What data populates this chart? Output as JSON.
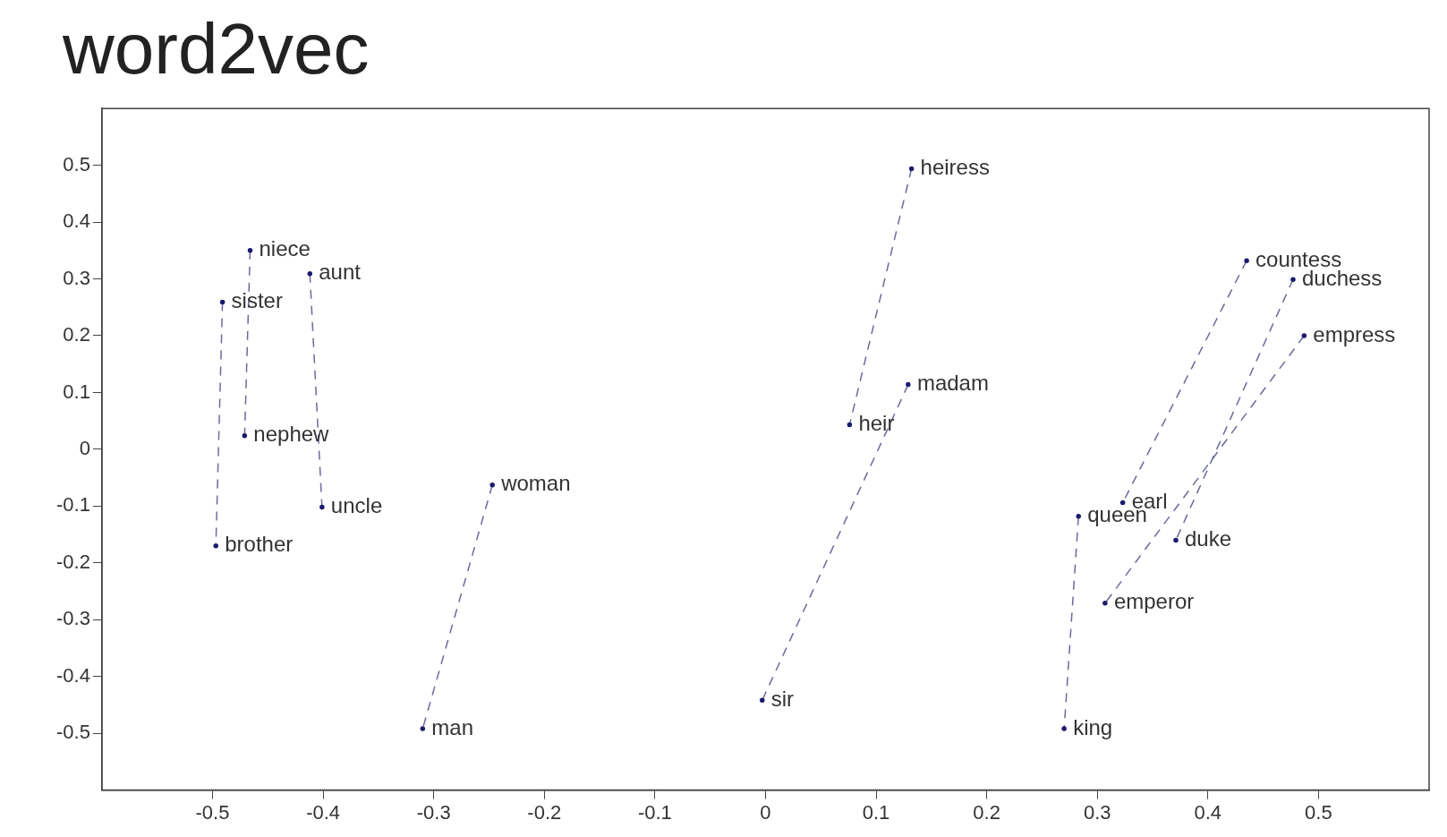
{
  "chart_data": {
    "type": "line",
    "title": "word2vec",
    "xlim": [
      -0.6,
      0.6
    ],
    "xticks": [
      -0.5,
      -0.4,
      -0.3,
      -0.2,
      -0.1,
      0,
      0.1,
      0.2,
      0.3,
      0.4,
      0.5
    ],
    "ylim": [
      -0.6,
      0.6
    ],
    "yticks": [
      -0.5,
      -0.4,
      -0.3,
      -0.2,
      -0.1,
      0,
      0.1,
      0.2,
      0.3,
      0.4,
      0.5
    ],
    "grid": false,
    "legend": false,
    "marker": "circle",
    "line_style": "dashed",
    "series": [
      {
        "x": [
          0.132,
          0.076
        ],
        "values": [
          0.494,
          0.043
        ],
        "color": "#6a6a9c"
      },
      {
        "x": [
          0.129,
          -0.003
        ],
        "values": [
          0.114,
          -0.442
        ],
        "color": "#6a6a9c"
      },
      {
        "x": [
          -0.466,
          -0.471
        ],
        "values": [
          0.35,
          0.024
        ],
        "color": "#6a6a9c"
      },
      {
        "x": [
          -0.412,
          -0.401
        ],
        "values": [
          0.309,
          -0.102
        ],
        "color": "#6a6a9c"
      },
      {
        "x": [
          -0.491,
          -0.497
        ],
        "values": [
          0.259,
          -0.17
        ],
        "color": "#6a6a9c"
      },
      {
        "x": [
          -0.247,
          -0.31
        ],
        "values": [
          -0.063,
          -0.492
        ],
        "color": "#6a6a9c"
      },
      {
        "x": [
          0.435,
          0.323
        ],
        "values": [
          0.332,
          -0.094
        ],
        "color": "#6a6a9c"
      },
      {
        "x": [
          0.477,
          0.371
        ],
        "values": [
          0.299,
          -0.16
        ],
        "color": "#6a6a9c"
      },
      {
        "x": [
          0.487,
          0.307
        ],
        "values": [
          0.2,
          -0.271
        ],
        "color": "#6a6a9c"
      },
      {
        "x": [
          0.283,
          0.27
        ],
        "values": [
          -0.118,
          -0.492
        ],
        "color": "#6a6a9c"
      }
    ],
    "annotations": [
      {
        "text": "heiress",
        "x": 0.132,
        "y": 0.494
      },
      {
        "text": "heir",
        "x": 0.076,
        "y": 0.043
      },
      {
        "text": "madam",
        "x": 0.129,
        "y": 0.114
      },
      {
        "text": "sir",
        "x": -0.003,
        "y": -0.442
      },
      {
        "text": "niece",
        "x": -0.466,
        "y": 0.35
      },
      {
        "text": "nephew",
        "x": -0.471,
        "y": 0.024
      },
      {
        "text": "aunt",
        "x": -0.412,
        "y": 0.309
      },
      {
        "text": "uncle",
        "x": -0.401,
        "y": -0.102
      },
      {
        "text": "sister",
        "x": -0.491,
        "y": 0.259
      },
      {
        "text": "brother",
        "x": -0.497,
        "y": -0.17
      },
      {
        "text": "woman",
        "x": -0.247,
        "y": -0.063
      },
      {
        "text": "man",
        "x": -0.31,
        "y": -0.492
      },
      {
        "text": "countess",
        "x": 0.435,
        "y": 0.332
      },
      {
        "text": "earl",
        "x": 0.323,
        "y": -0.094
      },
      {
        "text": "duchess",
        "x": 0.477,
        "y": 0.299
      },
      {
        "text": "duke",
        "x": 0.371,
        "y": -0.16
      },
      {
        "text": "empress",
        "x": 0.487,
        "y": 0.2
      },
      {
        "text": "emperor",
        "x": 0.307,
        "y": -0.271
      },
      {
        "text": "queen",
        "x": 0.283,
        "y": -0.118
      },
      {
        "text": "king",
        "x": 0.27,
        "y": -0.492
      }
    ]
  }
}
